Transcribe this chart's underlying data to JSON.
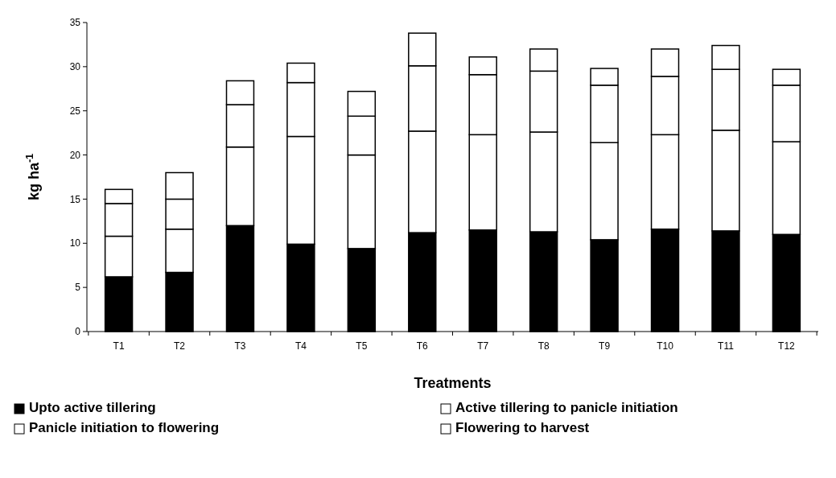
{
  "chart_data": {
    "type": "bar",
    "stacked": true,
    "xlabel": "Treatments",
    "ylabel": "kg ha$^{-1}$",
    "categories": [
      "T1",
      "T2",
      "T3",
      "T4",
      "T5",
      "T6",
      "T7",
      "T8",
      "T9",
      "T10",
      "T11",
      "T12"
    ],
    "ylim": [
      0,
      35
    ],
    "yticks": [
      0,
      5,
      10,
      15,
      20,
      25,
      30,
      35
    ],
    "legend": "bottom",
    "series": [
      {
        "name": "Upto active tillering",
        "color": "#000000",
        "values": [
          6.2,
          6.7,
          12.0,
          9.9,
          9.4,
          11.2,
          11.5,
          11.3,
          10.4,
          11.6,
          11.4,
          11.0
        ]
      },
      {
        "name": "Panicle initiation to flowering",
        "color": "#ffffff",
        "values": [
          4.6,
          4.9,
          8.9,
          12.2,
          10.6,
          11.5,
          10.8,
          11.3,
          11.0,
          10.7,
          11.4,
          10.5
        ]
      },
      {
        "name": "Active tillering to panicle initiation",
        "color": "#ffffff",
        "values": [
          3.7,
          3.4,
          4.8,
          6.1,
          4.4,
          7.4,
          6.8,
          6.9,
          6.5,
          6.6,
          6.9,
          6.4
        ]
      },
      {
        "name": "Flowering to harvest",
        "color": "#ffffff",
        "values": [
          1.6,
          3.0,
          2.7,
          2.2,
          2.8,
          3.7,
          2.0,
          2.5,
          1.9,
          3.1,
          2.7,
          1.8
        ]
      }
    ]
  }
}
